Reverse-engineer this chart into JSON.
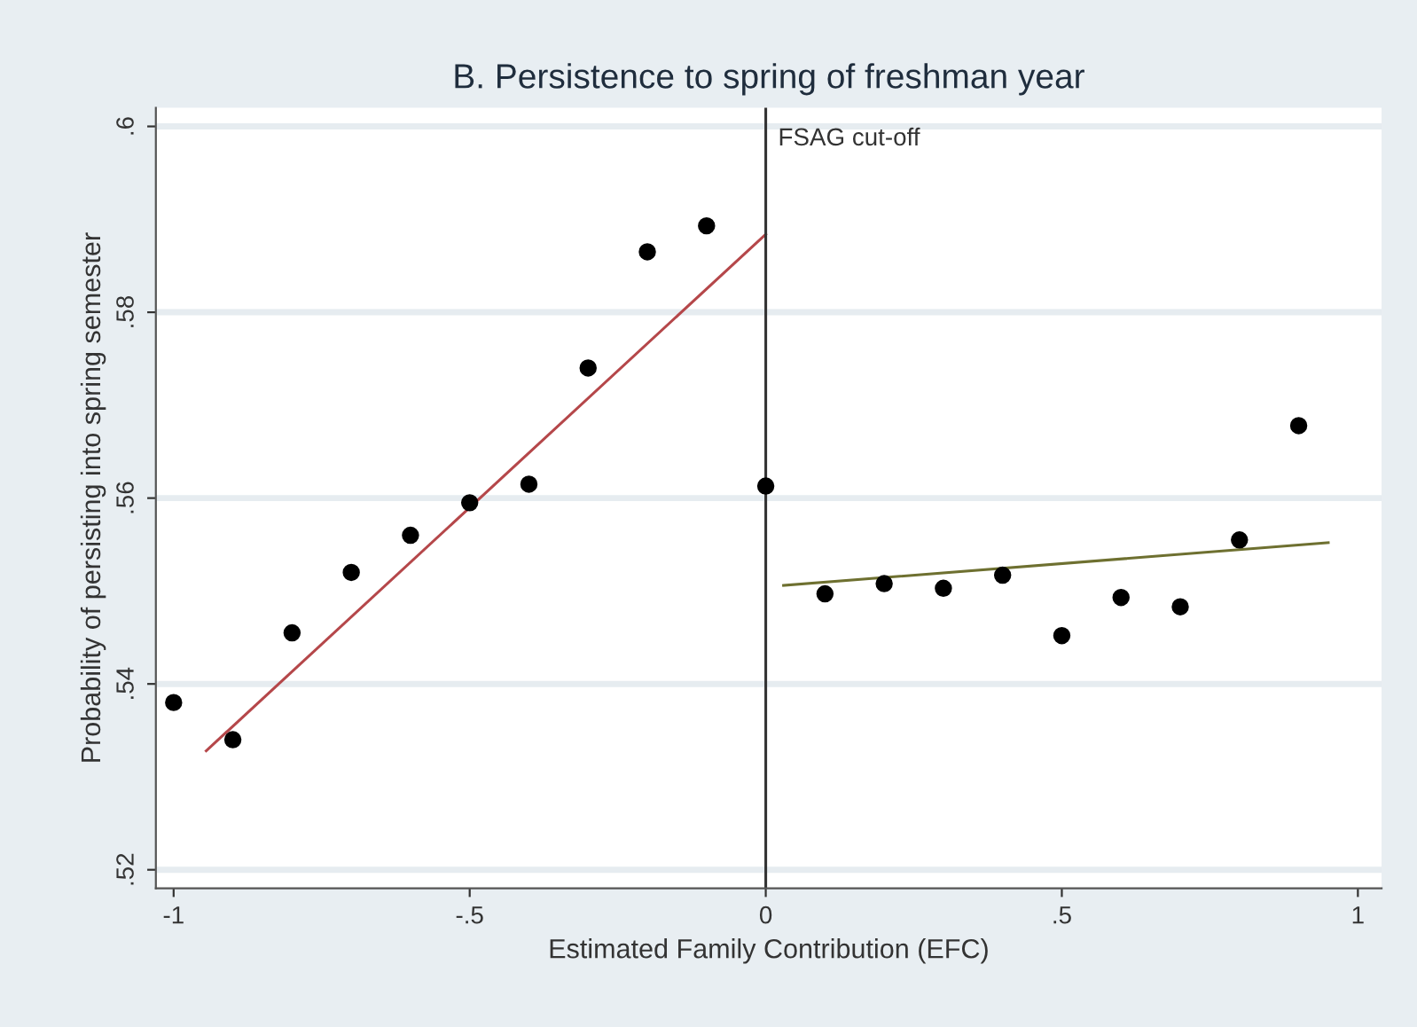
{
  "chart_data": {
    "type": "scatter",
    "title": "B. Persistence to spring of freshman year",
    "xlabel": "Estimated Family Contribution (EFC)",
    "ylabel": "Probability of persisting into spring semester",
    "series": [
      {
        "color": "#000000",
        "marker": "circle",
        "x": [
          -1,
          -0.9,
          -0.8,
          -0.7,
          -0.6,
          -0.5,
          -0.4,
          -0.3,
          -0.2,
          -0.1,
          0,
          0.1,
          0.2,
          0.3,
          0.4,
          0.5,
          0.6,
          0.7,
          0.8,
          0.9
        ],
        "values": [
          0.538,
          0.534,
          0.5455,
          0.552,
          0.556,
          0.5595,
          0.5615,
          0.574,
          0.5865,
          0.5893,
          0.5613,
          0.5497,
          0.5508,
          0.5503,
          0.5517,
          0.5452,
          0.5493,
          0.5483,
          0.5555,
          0.5678
        ]
      },
      {
        "type": "line",
        "color": "#b5474a",
        "line_style": "solid",
        "x": [
          -0.945,
          0
        ],
        "values": [
          0.5328,
          0.5884
        ]
      },
      {
        "type": "line",
        "color": "#6e7030",
        "line_style": "solid",
        "x": [
          0.03,
          0.95
        ],
        "values": [
          0.5506,
          0.5552
        ]
      }
    ],
    "xlim": [
      -1.03,
      1.04
    ],
    "ylim": [
      0.518,
      0.602
    ],
    "xticks": [
      {
        "value": -1,
        "label": "-1"
      },
      {
        "value": -0.5,
        "label": "-.5"
      },
      0,
      {
        "value": 0.5,
        "label": ".5"
      },
      1
    ],
    "yticks": [
      {
        "value": 0.52,
        "label": ".52"
      },
      {
        "value": 0.54,
        "label": ".54"
      },
      {
        "value": 0.56,
        "label": ".56"
      },
      {
        "value": 0.58,
        "label": ".58"
      },
      {
        "value": 0.6,
        "label": ".6"
      }
    ],
    "ref_lines": [
      {
        "axis": "x",
        "value": 0,
        "label": "FSAG cut-off",
        "color": "#333333"
      }
    ],
    "grid": "y",
    "legend": false
  }
}
